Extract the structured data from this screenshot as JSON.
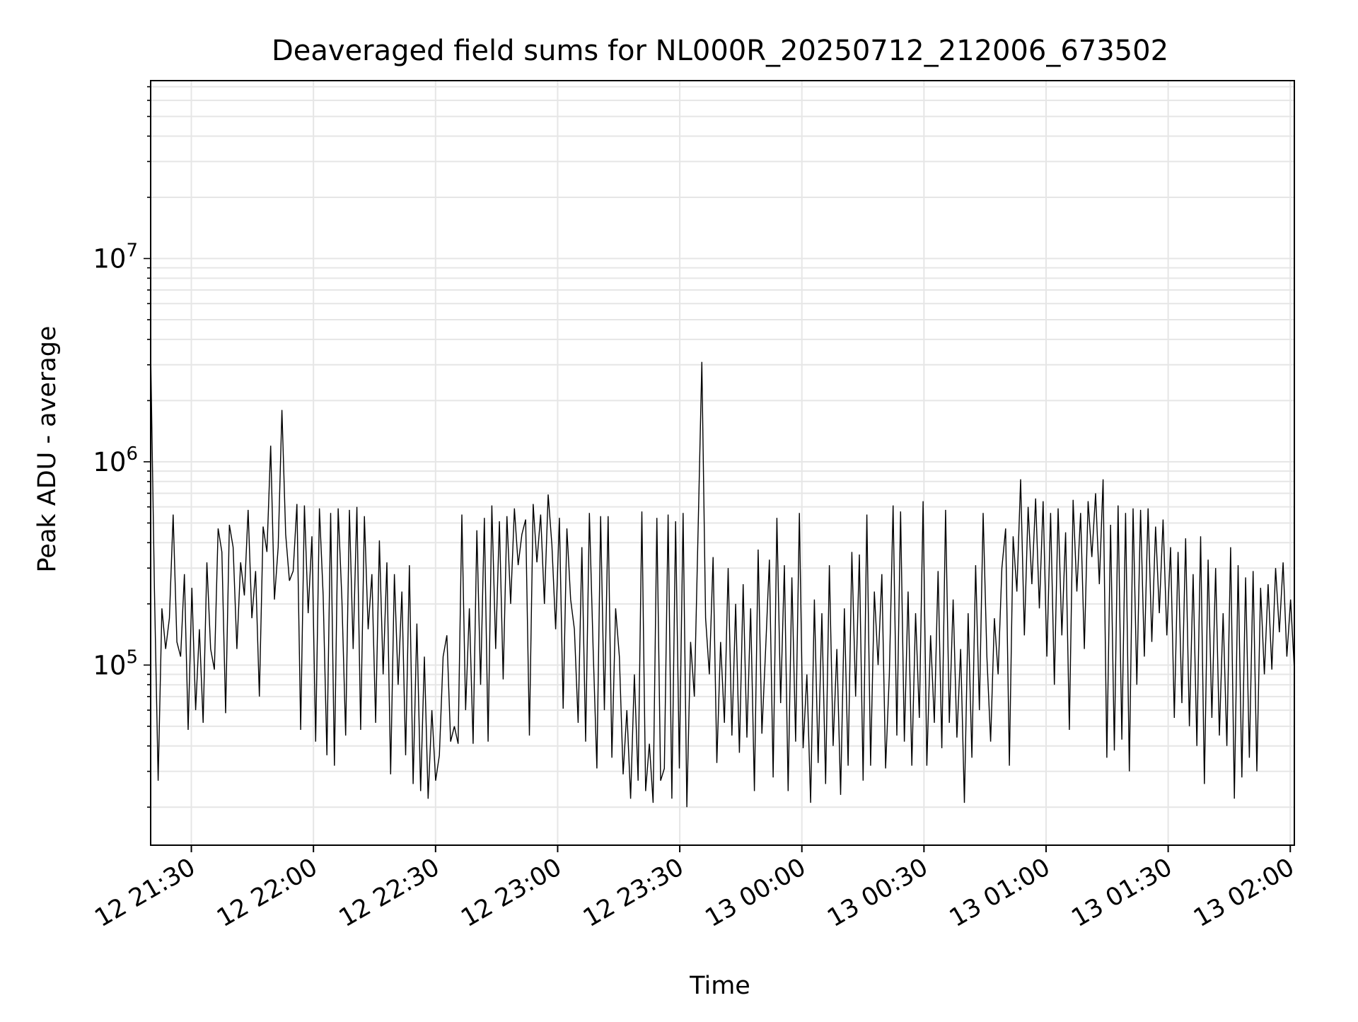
{
  "chart_data": {
    "type": "line",
    "title": "Deaveraged field sums for NL000R_20250712_212006_673502",
    "xlabel": "Time",
    "ylabel": "Peak ADU - average",
    "x_ticks": [
      "12 21:30",
      "12 22:00",
      "12 22:30",
      "12 23:00",
      "12 23:30",
      "13 00:00",
      "13 00:30",
      "13 01:00",
      "13 01:30",
      "13 02:00"
    ],
    "y_ticks": [
      {
        "base": "10",
        "exp": "5",
        "value": 100000
      },
      {
        "base": "10",
        "exp": "6",
        "value": 1000000
      },
      {
        "base": "10",
        "exp": "7",
        "value": 10000000
      }
    ],
    "x_range": [
      "2025-07-12 21:20",
      "2025-07-13 02:01"
    ],
    "ylim": [
      13000,
      75000000
    ],
    "yscale": "log",
    "grid": true,
    "line_color": "#000000",
    "series": [
      {
        "x_start": "2025-07-12 21:20",
        "x_end": "2025-07-13 02:01",
        "values": [
          3500000,
          240000,
          27000,
          190000,
          120000,
          170000,
          550000,
          130000,
          110000,
          280000,
          48000,
          240000,
          60000,
          150000,
          52000,
          320000,
          120000,
          95000,
          470000,
          360000,
          58000,
          490000,
          380000,
          120000,
          320000,
          220000,
          580000,
          170000,
          290000,
          70000,
          480000,
          360000,
          1200000,
          210000,
          380000,
          1800000,
          440000,
          260000,
          290000,
          620000,
          48000,
          610000,
          180000,
          430000,
          42000,
          590000,
          220000,
          36000,
          560000,
          32000,
          590000,
          210000,
          45000,
          580000,
          120000,
          600000,
          48000,
          540000,
          150000,
          280000,
          52000,
          410000,
          90000,
          320000,
          29000,
          280000,
          80000,
          230000,
          36000,
          310000,
          26000,
          160000,
          24000,
          110000,
          22000,
          60000,
          27000,
          36000,
          110000,
          140000,
          42000,
          50000,
          41000,
          550000,
          60000,
          190000,
          41000,
          460000,
          80000,
          530000,
          42000,
          610000,
          120000,
          510000,
          85000,
          540000,
          200000,
          590000,
          310000,
          440000,
          520000,
          45000,
          620000,
          320000,
          550000,
          200000,
          690000,
          390000,
          150000,
          530000,
          61000,
          470000,
          210000,
          150000,
          52000,
          380000,
          42000,
          560000,
          120000,
          31000,
          540000,
          60000,
          540000,
          35000,
          190000,
          110000,
          29000,
          60000,
          22000,
          90000,
          27000,
          570000,
          24000,
          41000,
          21000,
          530000,
          27000,
          31000,
          550000,
          22000,
          510000,
          31000,
          560000,
          20000,
          130000,
          70000,
          460000,
          3100000,
          170000,
          90000,
          340000,
          33000,
          130000,
          52000,
          300000,
          45000,
          200000,
          37000,
          250000,
          44000,
          190000,
          24000,
          370000,
          46000,
          120000,
          330000,
          28000,
          530000,
          65000,
          310000,
          24000,
          270000,
          42000,
          560000,
          39000,
          90000,
          21000,
          210000,
          33000,
          180000,
          26000,
          310000,
          40000,
          120000,
          23000,
          190000,
          32000,
          360000,
          70000,
          350000,
          27000,
          550000,
          32000,
          230000,
          100000,
          280000,
          31000,
          90000,
          610000,
          45000,
          570000,
          42000,
          230000,
          32000,
          180000,
          55000,
          640000,
          32000,
          140000,
          52000,
          290000,
          39000,
          580000,
          52000,
          210000,
          44000,
          120000,
          21000,
          180000,
          35000,
          310000,
          60000,
          560000,
          110000,
          42000,
          170000,
          90000,
          300000,
          470000,
          32000,
          430000,
          230000,
          820000,
          140000,
          600000,
          250000,
          660000,
          190000,
          640000,
          110000,
          560000,
          80000,
          590000,
          140000,
          450000,
          48000,
          650000,
          230000,
          560000,
          120000,
          640000,
          340000,
          700000,
          250000,
          820000,
          35000,
          490000,
          38000,
          610000,
          43000,
          560000,
          30000,
          590000,
          80000,
          580000,
          110000,
          590000,
          130000,
          480000,
          180000,
          520000,
          140000,
          380000,
          55000,
          360000,
          65000,
          420000,
          50000,
          280000,
          40000,
          430000,
          26000,
          330000,
          55000,
          300000,
          45000,
          180000,
          40000,
          380000,
          22000,
          310000,
          28000,
          270000,
          35000,
          290000,
          30000,
          240000,
          90000,
          250000,
          95000,
          300000,
          145000,
          320000,
          110000,
          210000,
          95000
        ]
      }
    ]
  }
}
